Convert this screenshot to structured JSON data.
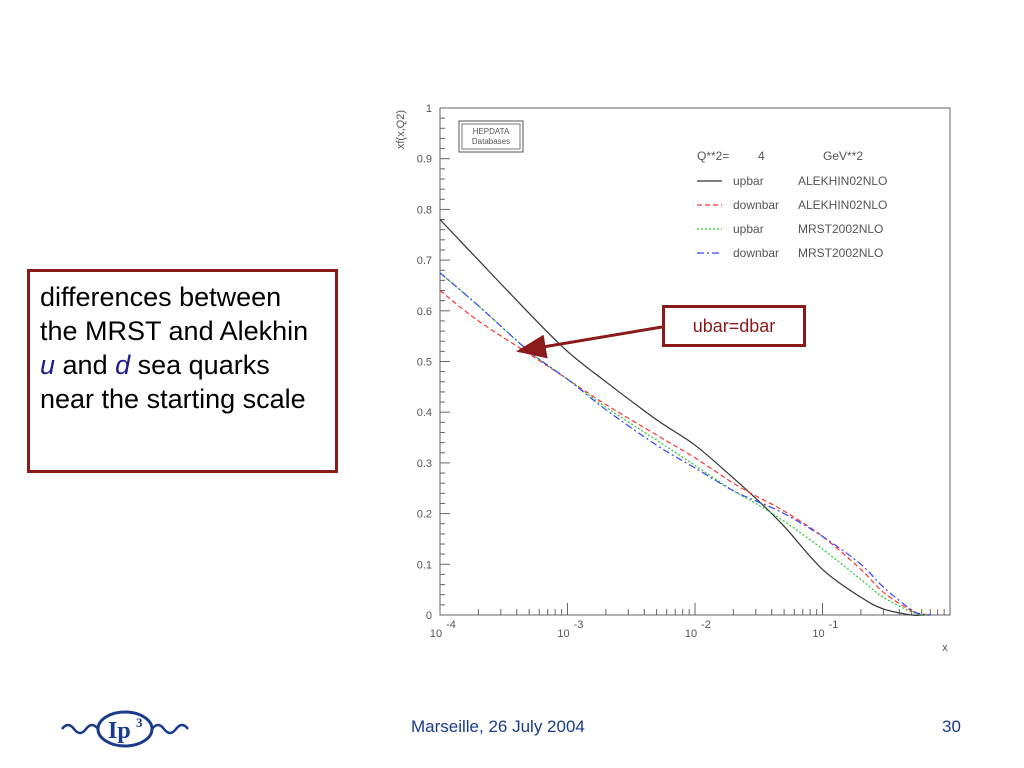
{
  "slide": {
    "box_parts": [
      "differences between the MRST and Alekhin ",
      "u",
      " and ",
      "d",
      " sea quarks near the starting scale"
    ],
    "annotation": "ubar=dbar",
    "footer_center": "Marseille, 26 July 2004",
    "page_number": "30",
    "logo_text": "Ip",
    "logo_sup": "3",
    "colors": {
      "accent_red": "#8b1a1a",
      "accent_blue": "#1a3a8c"
    }
  },
  "chart_data": {
    "type": "line",
    "ylabel": "xf(x,Q2)",
    "xlabel": "x",
    "xscale": "log",
    "xlim": [
      0.0001,
      1
    ],
    "ylim": [
      0,
      1
    ],
    "x_ticks": [
      "10^-4",
      "10^-3",
      "10^-2",
      "10^-1"
    ],
    "y_ticks": [
      "0",
      "0.1",
      "0.2",
      "0.3",
      "0.4",
      "0.5",
      "0.6",
      "0.7",
      "0.8",
      "0.9",
      "1"
    ],
    "stamp": [
      "HEPDATA",
      "Databases"
    ],
    "legend_header": [
      "Q**2=",
      "4",
      "GeV**2"
    ],
    "legend": [
      {
        "flavour": "upbar",
        "set": "ALEKHIN02NLO",
        "color": "#333333",
        "dash": ""
      },
      {
        "flavour": "downbar",
        "set": "ALEKHIN02NLO",
        "color": "#ff3333",
        "dash": "5,3"
      },
      {
        "flavour": "upbar",
        "set": "MRST2002NLO",
        "color": "#22cc22",
        "dash": "2,2"
      },
      {
        "flavour": "downbar",
        "set": "MRST2002NLO",
        "color": "#3344ff",
        "dash": "7,3,2,3"
      }
    ],
    "series": [
      {
        "name": "upbar ALEKHIN02NLO",
        "color": "#333333",
        "dash": "",
        "x": [
          0.0001,
          0.0002,
          0.0005,
          0.001,
          0.002,
          0.005,
          0.01,
          0.02,
          0.03,
          0.05,
          0.1,
          0.2,
          0.3,
          0.5,
          0.6,
          0.7
        ],
        "y": [
          0.78,
          0.7,
          0.595,
          0.52,
          0.46,
          0.385,
          0.335,
          0.27,
          0.23,
          0.175,
          0.09,
          0.035,
          0.012,
          0.0,
          0.0,
          0.0
        ]
      },
      {
        "name": "downbar ALEKHIN02NLO",
        "color": "#ff3333",
        "dash": "5,3",
        "x": [
          0.0001,
          0.0002,
          0.0005,
          0.001,
          0.002,
          0.005,
          0.01,
          0.02,
          0.03,
          0.05,
          0.1,
          0.2,
          0.3,
          0.5,
          0.6,
          0.7
        ],
        "y": [
          0.64,
          0.58,
          0.515,
          0.465,
          0.415,
          0.355,
          0.31,
          0.26,
          0.235,
          0.205,
          0.155,
          0.09,
          0.045,
          0.008,
          0.002,
          0.0
        ]
      },
      {
        "name": "upbar MRST2002NLO",
        "color": "#22cc22",
        "dash": "2,2",
        "x": [
          0.0001,
          0.0002,
          0.0005,
          0.001,
          0.002,
          0.005,
          0.01,
          0.02,
          0.03,
          0.05,
          0.1,
          0.2,
          0.3,
          0.5,
          0.6,
          0.7
        ],
        "y": [
          0.675,
          0.61,
          0.52,
          0.465,
          0.41,
          0.345,
          0.295,
          0.245,
          0.22,
          0.185,
          0.13,
          0.07,
          0.035,
          0.006,
          0.001,
          0.0
        ]
      },
      {
        "name": "downbar MRST2002NLO",
        "color": "#3344ff",
        "dash": "7,3,2,3",
        "x": [
          0.0001,
          0.0002,
          0.0005,
          0.001,
          0.002,
          0.005,
          0.01,
          0.02,
          0.03,
          0.05,
          0.1,
          0.2,
          0.3,
          0.5,
          0.6,
          0.7
        ],
        "y": [
          0.675,
          0.61,
          0.52,
          0.465,
          0.405,
          0.335,
          0.29,
          0.245,
          0.225,
          0.2,
          0.155,
          0.1,
          0.055,
          0.01,
          0.002,
          0.0
        ]
      }
    ]
  }
}
